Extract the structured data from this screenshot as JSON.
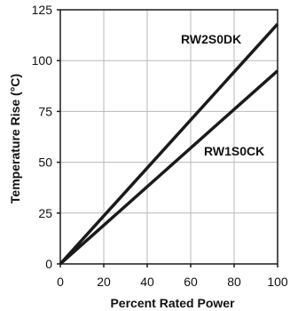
{
  "chart_data": {
    "type": "line",
    "title": "",
    "xlabel": "Percent Rated Power",
    "ylabel": "Temperature Rise (°C)",
    "xlim": [
      0,
      100
    ],
    "ylim": [
      0,
      125
    ],
    "xticks": [
      "0",
      "20",
      "40",
      "60",
      "80",
      "100"
    ],
    "yticks": [
      "0",
      "25",
      "50",
      "75",
      "100",
      "125"
    ],
    "grid": true,
    "legend": "none",
    "series": [
      {
        "name": "RW2S0DK",
        "x": [
          0,
          100
        ],
        "y": [
          0,
          118
        ],
        "color": "#1a1a1a"
      },
      {
        "name": "RW1S0CK",
        "x": [
          0,
          100
        ],
        "y": [
          0,
          95
        ],
        "color": "#1a1a1a"
      }
    ]
  }
}
